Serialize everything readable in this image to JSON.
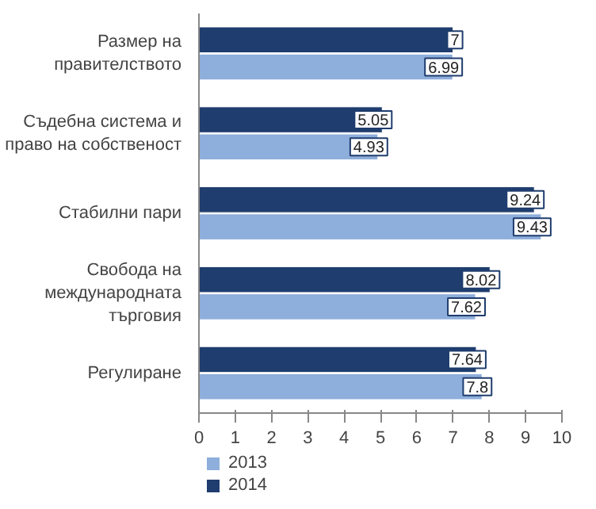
{
  "chart_data": {
    "type": "bar",
    "orientation": "horizontal",
    "categories": [
      "Размер на правителството",
      "Съдебна система и право на собственост",
      "Стабилни пари",
      "Свобода на международната търговия",
      "Регулиране"
    ],
    "series": [
      {
        "name": "2014",
        "color": "#1f3d6e",
        "values": [
          7,
          5.05,
          9.24,
          8.02,
          7.64
        ]
      },
      {
        "name": "2013",
        "color": "#8eaedb",
        "values": [
          6.99,
          4.93,
          9.43,
          7.62,
          7.8
        ]
      }
    ],
    "xlim": [
      0,
      10
    ],
    "xticks": [
      0,
      1,
      2,
      3,
      4,
      5,
      6,
      7,
      8,
      9,
      10
    ],
    "data_labels": true,
    "legend": "bottom left",
    "grid": false
  }
}
